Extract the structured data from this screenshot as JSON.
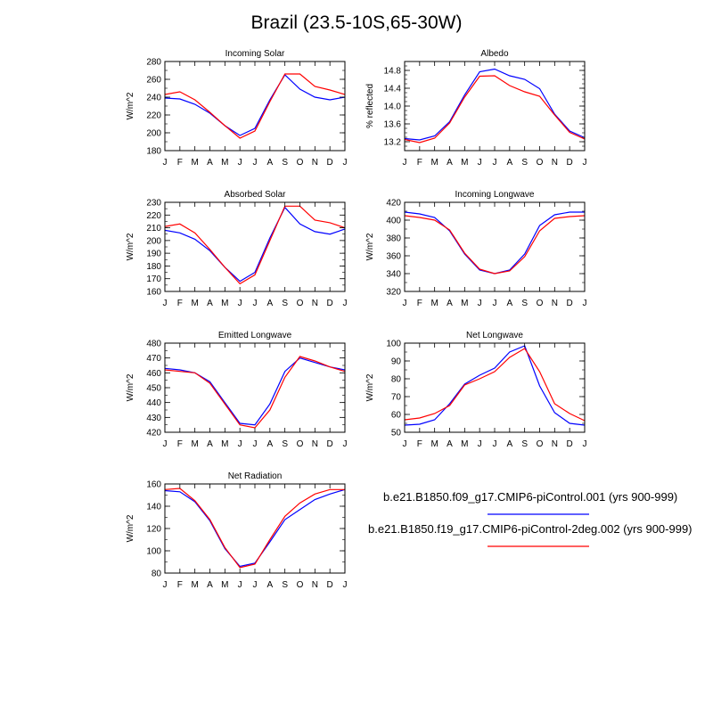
{
  "title": "Brazil (23.5-10S,65-30W)",
  "colors": {
    "series1": "#0000ff",
    "series2": "#ff0000",
    "axis": "#000000"
  },
  "months": [
    "J",
    "F",
    "M",
    "A",
    "M",
    "J",
    "J",
    "A",
    "S",
    "O",
    "N",
    "D",
    "J"
  ],
  "legend": {
    "series1": "b.e21.B1850.f09_g17.CMIP6-piControl.001 (yrs 900-999)",
    "series2": "b.e21.B1850.f19_g17.CMIP6-piControl-2deg.002 (yrs 900-999)"
  },
  "chart_data": [
    {
      "type": "line",
      "title": "Incoming Solar",
      "ylabel": "W/m^2",
      "ylim": [
        180,
        280
      ],
      "yticks": [
        180,
        200,
        220,
        240,
        260,
        280
      ],
      "yminor": 10,
      "series": [
        {
          "name": "b.e21.B1850.f09_g17.CMIP6-piControl.001",
          "values": [
            239,
            238,
            232,
            222,
            208,
            197,
            205,
            237,
            265,
            249,
            240,
            237,
            240
          ]
        },
        {
          "name": "b.e21.B1850.f19_g17.CMIP6-piControl-2deg.002",
          "values": [
            243,
            246,
            237,
            223,
            208,
            194,
            202,
            235,
            266,
            266,
            252,
            248,
            243
          ]
        }
      ]
    },
    {
      "type": "line",
      "title": "Albedo",
      "ylabel": "% reflected",
      "ylim": [
        13.0,
        15.0
      ],
      "yticks": [
        13.2,
        13.6,
        14.0,
        14.4,
        14.8
      ],
      "yminor": 0.1,
      "ydecimals": 1,
      "series": [
        {
          "name": "b.e21.B1850.f09_g17.CMIP6-piControl.001",
          "values": [
            13.27,
            13.24,
            13.33,
            13.65,
            14.25,
            14.77,
            14.83,
            14.68,
            14.6,
            14.39,
            13.82,
            13.44,
            13.29
          ]
        },
        {
          "name": "b.e21.B1850.f19_g17.CMIP6-piControl-2deg.002",
          "values": [
            13.25,
            13.18,
            13.28,
            13.62,
            14.2,
            14.67,
            14.68,
            14.46,
            14.32,
            14.22,
            13.8,
            13.41,
            13.26
          ]
        }
      ]
    },
    {
      "type": "line",
      "title": "Absorbed Solar",
      "ylabel": "W/m^2",
      "ylim": [
        160,
        230
      ],
      "yticks": [
        160,
        170,
        180,
        190,
        200,
        210,
        220,
        230
      ],
      "yminor": 5,
      "series": [
        {
          "name": "b.e21.B1850.f09_g17.CMIP6-piControl.001",
          "values": [
            208,
            206,
            201,
            192,
            179,
            168,
            175,
            202,
            226,
            213,
            207,
            205,
            209
          ]
        },
        {
          "name": "b.e21.B1850.f19_g17.CMIP6-piControl-2deg.002",
          "values": [
            211,
            213,
            206,
            193,
            179,
            166,
            173,
            200,
            227,
            227,
            216,
            214,
            210
          ]
        }
      ]
    },
    {
      "type": "line",
      "title": "Incoming Longwave",
      "ylabel": "W/m^2",
      "ylim": [
        320,
        420
      ],
      "yticks": [
        320,
        340,
        360,
        380,
        400,
        420
      ],
      "yminor": 10,
      "series": [
        {
          "name": "b.e21.B1850.f09_g17.CMIP6-piControl.001",
          "values": [
            409,
            407,
            403,
            388,
            362,
            344,
            340,
            344,
            362,
            394,
            406,
            409,
            409
          ]
        },
        {
          "name": "b.e21.B1850.f19_g17.CMIP6-piControl-2deg.002",
          "values": [
            405,
            403,
            400,
            389,
            363,
            345,
            340,
            343,
            359,
            388,
            402,
            404,
            405
          ]
        }
      ]
    },
    {
      "type": "line",
      "title": "Emitted Longwave",
      "ylabel": "W/m^2",
      "ylim": [
        420,
        480
      ],
      "yticks": [
        420,
        430,
        440,
        450,
        460,
        470,
        480
      ],
      "yminor": 5,
      "series": [
        {
          "name": "b.e21.B1850.f09_g17.CMIP6-piControl.001",
          "values": [
            463,
            462,
            460,
            454,
            440,
            426,
            425,
            439,
            461,
            470,
            467,
            464,
            462
          ]
        },
        {
          "name": "b.e21.B1850.f19_g17.CMIP6-piControl-2deg.002",
          "values": [
            462,
            461,
            460,
            453,
            439,
            425,
            423,
            435,
            457,
            471,
            468,
            464,
            461
          ]
        }
      ]
    },
    {
      "type": "line",
      "title": "Net Longwave",
      "ylabel": "W/m^2",
      "ylim": [
        50,
        100
      ],
      "yticks": [
        50,
        60,
        70,
        80,
        90,
        100
      ],
      "yminor": 5,
      "series": [
        {
          "name": "b.e21.B1850.f09_g17.CMIP6-piControl.001",
          "values": [
            54,
            54.5,
            57,
            66,
            77,
            82,
            86,
            95,
            98.5,
            76,
            61,
            55,
            54
          ]
        },
        {
          "name": "b.e21.B1850.f19_g17.CMIP6-piControl-2deg.002",
          "values": [
            57,
            58,
            60.5,
            65,
            76.5,
            80,
            84,
            92,
            97,
            84,
            66,
            60.5,
            56.5
          ]
        }
      ]
    },
    {
      "type": "line",
      "title": "Net Radiation",
      "ylabel": "W/m^2",
      "ylim": [
        80,
        160
      ],
      "yticks": [
        80,
        100,
        120,
        140,
        160
      ],
      "yminor": 10,
      "series": [
        {
          "name": "b.e21.B1850.f09_g17.CMIP6-piControl.001",
          "values": [
            154,
            153,
            144,
            127,
            102,
            86,
            89,
            108,
            128,
            137,
            146,
            151,
            155
          ]
        },
        {
          "name": "b.e21.B1850.f19_g17.CMIP6-piControl-2deg.002",
          "values": [
            155,
            156,
            145,
            128,
            103,
            85,
            88,
            110,
            131,
            143,
            151,
            155,
            155
          ]
        }
      ]
    }
  ]
}
